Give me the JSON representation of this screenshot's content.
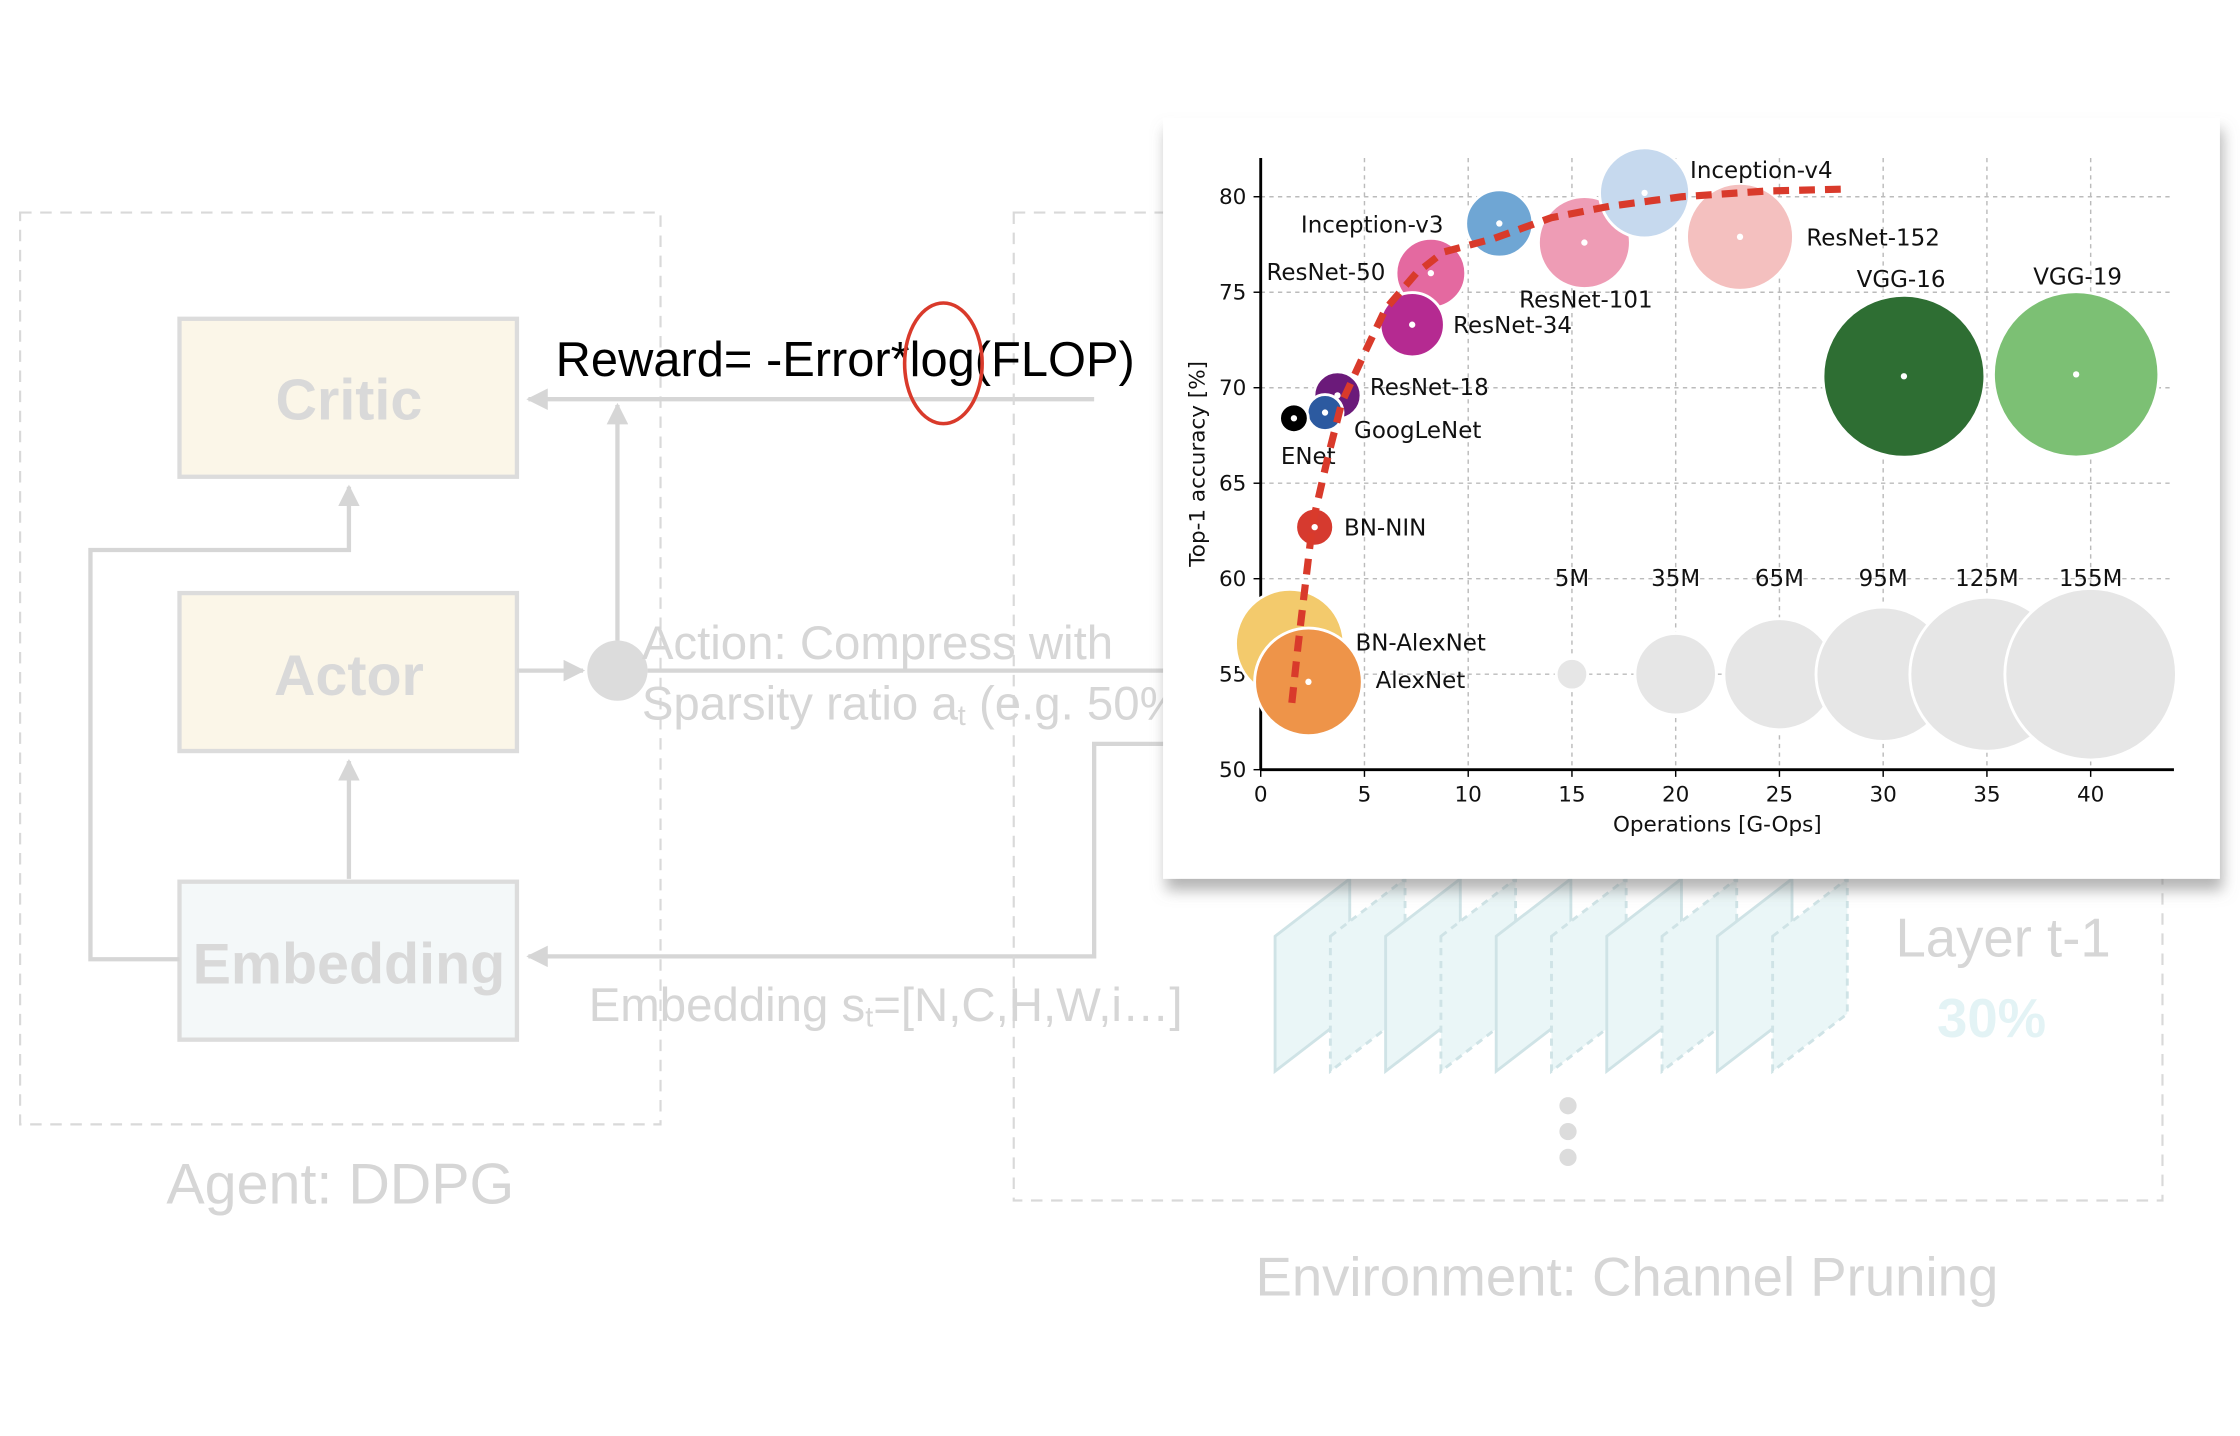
{
  "agent": {
    "title": "Agent: DDPG",
    "critic_label": "Critic",
    "actor_label": "Actor",
    "embedding_label": "Embedding"
  },
  "reward_formula": "Reward= -Error*log(FLOP)",
  "action_text": [
    "Action: Compress with",
    "Sparsity ratio a",
    "t",
    " (e.g. 50%"
  ],
  "embedding_text": [
    "Embedding s",
    "t",
    "=[N,C,H,W,i…]"
  ],
  "environment": {
    "title": "Environment: Channel Pruning",
    "layer_label": "Layer t-1",
    "layer_percent": "30%"
  },
  "colors": {
    "highlight": "#d93a2b",
    "pale_line": "#d6d6d6"
  },
  "chart_data": {
    "type": "scatter",
    "xlabel": "Operations [G-Ops]",
    "ylabel": "Top-1 accuracy [%]",
    "xlim": [
      0,
      44
    ],
    "ylim": [
      50,
      82
    ],
    "xticks": [
      "0",
      "5",
      "10",
      "15",
      "20",
      "25",
      "30",
      "35",
      "40"
    ],
    "yticks": [
      "50",
      "55",
      "60",
      "65",
      "70",
      "75",
      "80"
    ],
    "grid": true,
    "points": [
      {
        "name": "AlexNet",
        "x": 2.3,
        "y": 54.6,
        "params_m": 61,
        "color": "#ee9449"
      },
      {
        "name": "BN-AlexNet",
        "x": 1.4,
        "y": 56.6,
        "params_m": 62,
        "color": "#f3ca6c"
      },
      {
        "name": "BN-NIN",
        "x": 2.6,
        "y": 62.7,
        "params_m": 7.6,
        "color": "#d63a2f"
      },
      {
        "name": "ENet",
        "x": 1.6,
        "y": 68.4,
        "params_m": 0.37,
        "color": "#000000"
      },
      {
        "name": "GoogLeNet",
        "x": 3.1,
        "y": 68.7,
        "params_m": 6.8,
        "color": "#2c5aa0"
      },
      {
        "name": "ResNet-18",
        "x": 3.7,
        "y": 69.6,
        "params_m": 11.7,
        "color": "#6b1a7a"
      },
      {
        "name": "ResNet-34",
        "x": 7.3,
        "y": 73.3,
        "params_m": 21.8,
        "color": "#b52a91"
      },
      {
        "name": "ResNet-50",
        "x": 8.2,
        "y": 76.0,
        "params_m": 25.6,
        "color": "#e469a0"
      },
      {
        "name": "Inception-v3",
        "x": 11.5,
        "y": 78.6,
        "params_m": 23.8,
        "color": "#6fa6d4"
      },
      {
        "name": "ResNet-101",
        "x": 15.6,
        "y": 77.6,
        "params_m": 44.5,
        "color": "#ee9cb5"
      },
      {
        "name": "Inception-v4",
        "x": 18.5,
        "y": 80.2,
        "params_m": 42.7,
        "color": "#c6d9ee"
      },
      {
        "name": "ResNet-152",
        "x": 23.1,
        "y": 77.9,
        "params_m": 60.2,
        "color": "#f4c0bf"
      },
      {
        "name": "VGG-16",
        "x": 31.0,
        "y": 70.6,
        "params_m": 138,
        "color": "#2e6e33"
      },
      {
        "name": "VGG-19",
        "x": 39.3,
        "y": 70.7,
        "params_m": 144,
        "color": "#7cc074"
      }
    ],
    "size_legend": [
      {
        "label": "5M",
        "x": 15,
        "y": 55,
        "params_m": 5
      },
      {
        "label": "35M",
        "x": 20,
        "y": 55,
        "params_m": 35
      },
      {
        "label": "65M",
        "x": 25,
        "y": 55,
        "params_m": 65
      },
      {
        "label": "95M",
        "x": 30,
        "y": 55,
        "params_m": 95
      },
      {
        "label": "125M",
        "x": 35,
        "y": 55,
        "params_m": 125
      },
      {
        "label": "155M",
        "x": 40,
        "y": 55,
        "params_m": 155
      }
    ],
    "pareto_frontier": {
      "color": "#d93a2b",
      "x": [
        1.5,
        1.8,
        2.5,
        3.2,
        3.9,
        5.0,
        6.0,
        7.5,
        8.8,
        11.2,
        14.0,
        16.8,
        20.3,
        24.4,
        28.2
      ],
      "y": [
        53.5,
        56.5,
        62.9,
        66.2,
        69.2,
        71.8,
        74.1,
        76.0,
        77.1,
        77.8,
        78.9,
        79.5,
        80.0,
        80.3,
        80.4
      ]
    }
  }
}
